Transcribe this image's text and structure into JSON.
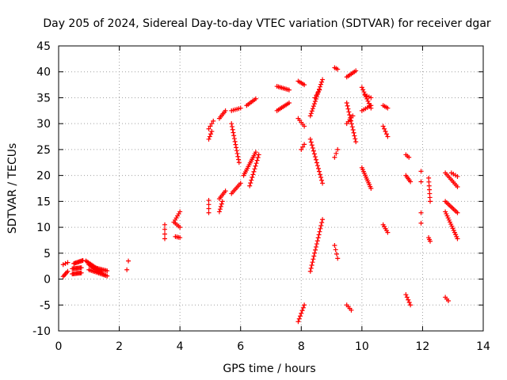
{
  "chart_data": {
    "type": "scatter",
    "title": "Day 205 of 2024, Sidereal Day-to-day VTEC variation (SDTVAR) for receiver dgar",
    "xlabel": "GPS time / hours",
    "ylabel": "SDTVAR / TECUs",
    "xlim": [
      0,
      14
    ],
    "ylim": [
      -10,
      45
    ],
    "xticks": [
      "0",
      "2",
      "4",
      "6",
      "8",
      "10",
      "12",
      "14"
    ],
    "yticks": [
      "-10",
      "-5",
      "0",
      "5",
      "10",
      "15",
      "20",
      "25",
      "30",
      "35",
      "40",
      "45"
    ],
    "grid": true,
    "marker": "+",
    "color": "#ff0000",
    "segments": [
      {
        "x0": 0.15,
        "y0": 0.5,
        "x1": 0.3,
        "y1": 1.5,
        "n": 5
      },
      {
        "x0": 0.15,
        "y0": 2.8,
        "x1": 0.3,
        "y1": 3.2,
        "n": 3
      },
      {
        "x0": 0.45,
        "y0": 1.0,
        "x1": 0.75,
        "y1": 1.2,
        "n": 10
      },
      {
        "x0": 0.45,
        "y0": 2.0,
        "x1": 0.75,
        "y1": 2.2,
        "n": 10
      },
      {
        "x0": 0.5,
        "y0": 3.0,
        "x1": 0.8,
        "y1": 3.6,
        "n": 10
      },
      {
        "x0": 0.9,
        "y0": 3.5,
        "x1": 1.4,
        "y1": 1.5,
        "n": 14
      },
      {
        "x0": 1.0,
        "y0": 2.8,
        "x1": 1.5,
        "y1": 0.8,
        "n": 14
      },
      {
        "x0": 1.0,
        "y0": 1.8,
        "x1": 1.6,
        "y1": 0.6,
        "n": 14
      },
      {
        "x0": 1.2,
        "y0": 2.2,
        "x1": 1.6,
        "y1": 1.6,
        "n": 10
      },
      {
        "x0": 2.25,
        "y0": 1.8,
        "x1": 2.25,
        "y1": 1.8,
        "n": 1
      },
      {
        "x0": 2.3,
        "y0": 3.5,
        "x1": 2.3,
        "y1": 3.5,
        "n": 1
      },
      {
        "x0": 3.5,
        "y0": 7.8,
        "x1": 3.5,
        "y1": 10.5,
        "n": 4
      },
      {
        "x0": 3.8,
        "y0": 11.0,
        "x1": 4.0,
        "y1": 13.0,
        "n": 6
      },
      {
        "x0": 3.8,
        "y0": 11.0,
        "x1": 4.0,
        "y1": 10.0,
        "n": 5
      },
      {
        "x0": 3.85,
        "y0": 8.2,
        "x1": 4.0,
        "y1": 8.0,
        "n": 4
      },
      {
        "x0": 4.95,
        "y0": 12.8,
        "x1": 4.95,
        "y1": 15.2,
        "n": 4
      },
      {
        "x0": 4.95,
        "y0": 27.0,
        "x1": 5.05,
        "y1": 28.5,
        "n": 4
      },
      {
        "x0": 4.95,
        "y0": 29.0,
        "x1": 5.1,
        "y1": 30.5,
        "n": 4
      },
      {
        "x0": 5.3,
        "y0": 13.0,
        "x1": 5.4,
        "y1": 15.0,
        "n": 5
      },
      {
        "x0": 5.3,
        "y0": 15.5,
        "x1": 5.5,
        "y1": 17.0,
        "n": 6
      },
      {
        "x0": 5.3,
        "y0": 31.0,
        "x1": 5.5,
        "y1": 32.5,
        "n": 6
      },
      {
        "x0": 5.7,
        "y0": 16.5,
        "x1": 6.0,
        "y1": 18.5,
        "n": 8
      },
      {
        "x0": 5.7,
        "y0": 32.5,
        "x1": 6.0,
        "y1": 33.0,
        "n": 6
      },
      {
        "x0": 5.7,
        "y0": 30.0,
        "x1": 5.95,
        "y1": 22.5,
        "n": 14
      },
      {
        "x0": 6.1,
        "y0": 20.0,
        "x1": 6.5,
        "y1": 24.5,
        "n": 14
      },
      {
        "x0": 6.3,
        "y0": 18.0,
        "x1": 6.6,
        "y1": 24.0,
        "n": 12
      },
      {
        "x0": 6.2,
        "y0": 33.5,
        "x1": 6.5,
        "y1": 34.8,
        "n": 7
      },
      {
        "x0": 7.2,
        "y0": 32.5,
        "x1": 7.6,
        "y1": 34.0,
        "n": 9
      },
      {
        "x0": 7.2,
        "y0": 37.2,
        "x1": 7.6,
        "y1": 36.5,
        "n": 9
      },
      {
        "x0": 7.9,
        "y0": 38.2,
        "x1": 8.1,
        "y1": 37.5,
        "n": 5
      },
      {
        "x0": 7.9,
        "y0": 31.0,
        "x1": 8.1,
        "y1": 29.5,
        "n": 5
      },
      {
        "x0": 8.0,
        "y0": 25.0,
        "x1": 8.1,
        "y1": 26.0,
        "n": 3
      },
      {
        "x0": 7.9,
        "y0": -8.2,
        "x1": 8.1,
        "y1": -5.0,
        "n": 7
      },
      {
        "x0": 8.3,
        "y0": 31.5,
        "x1": 8.7,
        "y1": 38.5,
        "n": 16
      },
      {
        "x0": 8.3,
        "y0": 27.0,
        "x1": 8.7,
        "y1": 18.5,
        "n": 16
      },
      {
        "x0": 8.3,
        "y0": 1.5,
        "x1": 8.7,
        "y1": 11.5,
        "n": 18
      },
      {
        "x0": 8.45,
        "y0": 35.0,
        "x1": 8.6,
        "y1": 36.5,
        "n": 4
      },
      {
        "x0": 9.1,
        "y0": 40.8,
        "x1": 9.2,
        "y1": 40.5,
        "n": 3
      },
      {
        "x0": 9.1,
        "y0": 6.5,
        "x1": 9.2,
        "y1": 4.0,
        "n": 4
      },
      {
        "x0": 9.1,
        "y0": 23.5,
        "x1": 9.2,
        "y1": 25.0,
        "n": 3
      },
      {
        "x0": 9.5,
        "y0": 34.0,
        "x1": 9.8,
        "y1": 26.5,
        "n": 14
      },
      {
        "x0": 9.5,
        "y0": 39.0,
        "x1": 9.8,
        "y1": 40.2,
        "n": 7
      },
      {
        "x0": 9.5,
        "y0": 30.0,
        "x1": 9.7,
        "y1": 31.5,
        "n": 5
      },
      {
        "x0": 9.5,
        "y0": -5.0,
        "x1": 9.65,
        "y1": -6.0,
        "n": 4
      },
      {
        "x0": 10.0,
        "y0": 37.0,
        "x1": 10.3,
        "y1": 33.0,
        "n": 10
      },
      {
        "x0": 10.0,
        "y0": 32.5,
        "x1": 10.3,
        "y1": 33.5,
        "n": 6
      },
      {
        "x0": 10.0,
        "y0": 21.5,
        "x1": 10.3,
        "y1": 17.5,
        "n": 12
      },
      {
        "x0": 10.1,
        "y0": 35.5,
        "x1": 10.3,
        "y1": 35.0,
        "n": 4
      },
      {
        "x0": 10.7,
        "y0": 33.5,
        "x1": 10.85,
        "y1": 33.0,
        "n": 4
      },
      {
        "x0": 10.7,
        "y0": 29.5,
        "x1": 10.85,
        "y1": 27.5,
        "n": 5
      },
      {
        "x0": 10.7,
        "y0": 10.5,
        "x1": 10.85,
        "y1": 9.0,
        "n": 5
      },
      {
        "x0": 11.45,
        "y0": 24.0,
        "x1": 11.55,
        "y1": 23.5,
        "n": 3
      },
      {
        "x0": 11.45,
        "y0": 20.0,
        "x1": 11.6,
        "y1": 18.8,
        "n": 5
      },
      {
        "x0": 11.45,
        "y0": -3.0,
        "x1": 11.6,
        "y1": -5.0,
        "n": 5
      },
      {
        "x0": 11.95,
        "y0": 20.8,
        "x1": 11.95,
        "y1": 18.8,
        "n": 2
      },
      {
        "x0": 11.95,
        "y0": 12.8,
        "x1": 11.95,
        "y1": 10.8,
        "n": 2
      },
      {
        "x0": 12.2,
        "y0": 19.5,
        "x1": 12.25,
        "y1": 15.0,
        "n": 7
      },
      {
        "x0": 12.2,
        "y0": 8.0,
        "x1": 12.25,
        "y1": 7.3,
        "n": 3
      },
      {
        "x0": 12.75,
        "y0": 20.5,
        "x1": 13.15,
        "y1": 17.8,
        "n": 10
      },
      {
        "x0": 12.95,
        "y0": 20.5,
        "x1": 13.15,
        "y1": 19.8,
        "n": 4
      },
      {
        "x0": 12.75,
        "y0": 15.0,
        "x1": 13.15,
        "y1": 12.8,
        "n": 10
      },
      {
        "x0": 12.75,
        "y0": 13.0,
        "x1": 13.15,
        "y1": 7.8,
        "n": 14
      },
      {
        "x0": 12.75,
        "y0": -3.5,
        "x1": 12.85,
        "y1": -4.2,
        "n": 3
      }
    ]
  }
}
